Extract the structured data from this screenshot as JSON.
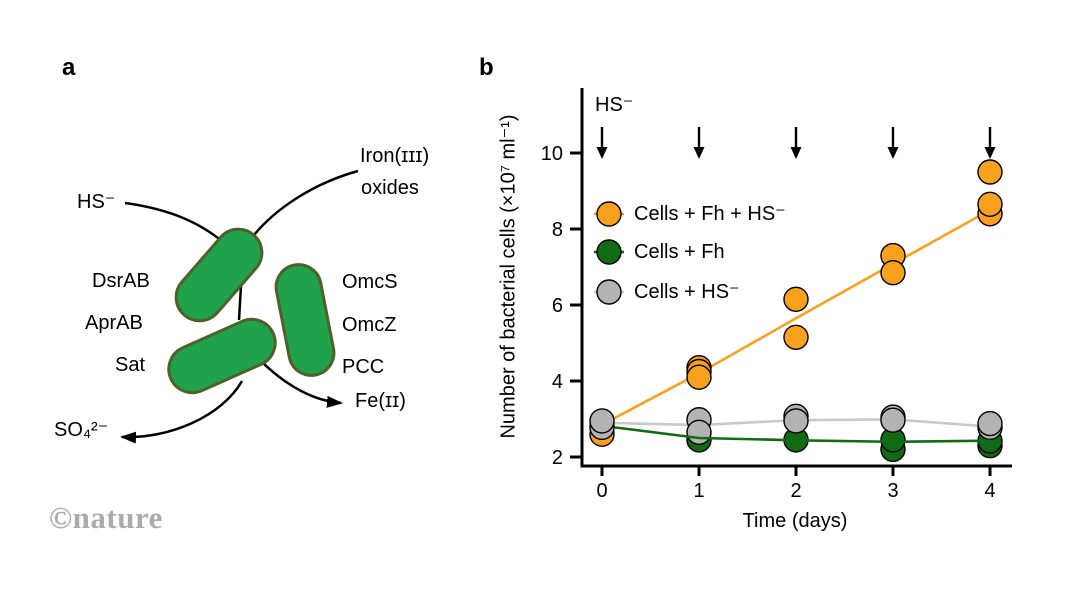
{
  "panel_a": {
    "label": "a",
    "watermark": "©nature",
    "cell_fill": "#1fa24b",
    "cell_stroke": "#4e6128",
    "labels": {
      "hs": "HS⁻",
      "iron_line1": "Iron(ɪɪɪ)",
      "iron_line2": "oxides",
      "dsrab": "DsrAB",
      "aprab": "AprAB",
      "sat": "Sat",
      "omcs": "OmcS",
      "omcz": "OmcZ",
      "pcc": "PCC",
      "sulfate": "SO₄²⁻",
      "fe2": "Fe(ɪɪ)"
    }
  },
  "panel_b": {
    "label": "b",
    "hs_annotation": "HS⁻"
  },
  "chart_data": {
    "type": "scatter",
    "title": "",
    "xlabel": "Time (days)",
    "ylabel": "Number of bacterial cells (×10⁷ ml⁻¹)",
    "x_ticks": [
      0,
      1,
      2,
      3,
      4
    ],
    "y_ticks": [
      2,
      4,
      6,
      8,
      10
    ],
    "xlim": [
      -0.2,
      4.2
    ],
    "ylim": [
      1.85,
      11.7
    ],
    "grid": false,
    "legend_position": "upper-left-inside",
    "hs_arrow_days": [
      0,
      1,
      2,
      3,
      4
    ],
    "annotation_note": "downward black arrows labeled HS⁻ mark sulfide additions at each day",
    "series": [
      {
        "name": "Cells + Fh + HS⁻",
        "color": "#F9A11C",
        "line_color": "#F9A11C",
        "points": [
          [
            0,
            2.6
          ],
          [
            1,
            4.35
          ],
          [
            1,
            4.25
          ],
          [
            1,
            4.1
          ],
          [
            2,
            6.15
          ],
          [
            2,
            5.15
          ],
          [
            3,
            7.3
          ],
          [
            3,
            6.85
          ],
          [
            4,
            9.5
          ],
          [
            4,
            8.4
          ],
          [
            4,
            8.65
          ]
        ],
        "trend": [
          [
            0,
            2.85
          ],
          [
            1,
            4.2
          ],
          [
            2,
            5.65
          ],
          [
            3,
            7.08
          ],
          [
            4,
            8.5
          ]
        ]
      },
      {
        "name": "Cells + Fh",
        "color": "#116B14",
        "line_color": "#116B14",
        "points": [
          [
            0,
            2.8
          ],
          [
            1,
            2.45
          ],
          [
            2,
            2.45
          ],
          [
            3,
            2.2
          ],
          [
            3,
            2.45
          ],
          [
            4,
            2.3
          ],
          [
            4,
            2.42
          ]
        ],
        "trend": [
          [
            0.13,
            2.78
          ],
          [
            1,
            2.5
          ],
          [
            2,
            2.44
          ],
          [
            3,
            2.4
          ],
          [
            4,
            2.43
          ]
        ]
      },
      {
        "name": "Cells + HS⁻",
        "color": "#B3B3B3",
        "line_color": "#C9C9C9",
        "points": [
          [
            0,
            2.78
          ],
          [
            0,
            2.95
          ],
          [
            1,
            2.98
          ],
          [
            1,
            2.65
          ],
          [
            2,
            3.07
          ],
          [
            2,
            2.95
          ],
          [
            3,
            3.05
          ],
          [
            3,
            2.97
          ],
          [
            4,
            2.78
          ],
          [
            4,
            2.88
          ]
        ],
        "trend": [
          [
            0,
            2.9
          ],
          [
            1,
            2.84
          ],
          [
            2,
            2.97
          ],
          [
            3,
            2.99
          ],
          [
            4,
            2.8
          ]
        ]
      }
    ]
  }
}
